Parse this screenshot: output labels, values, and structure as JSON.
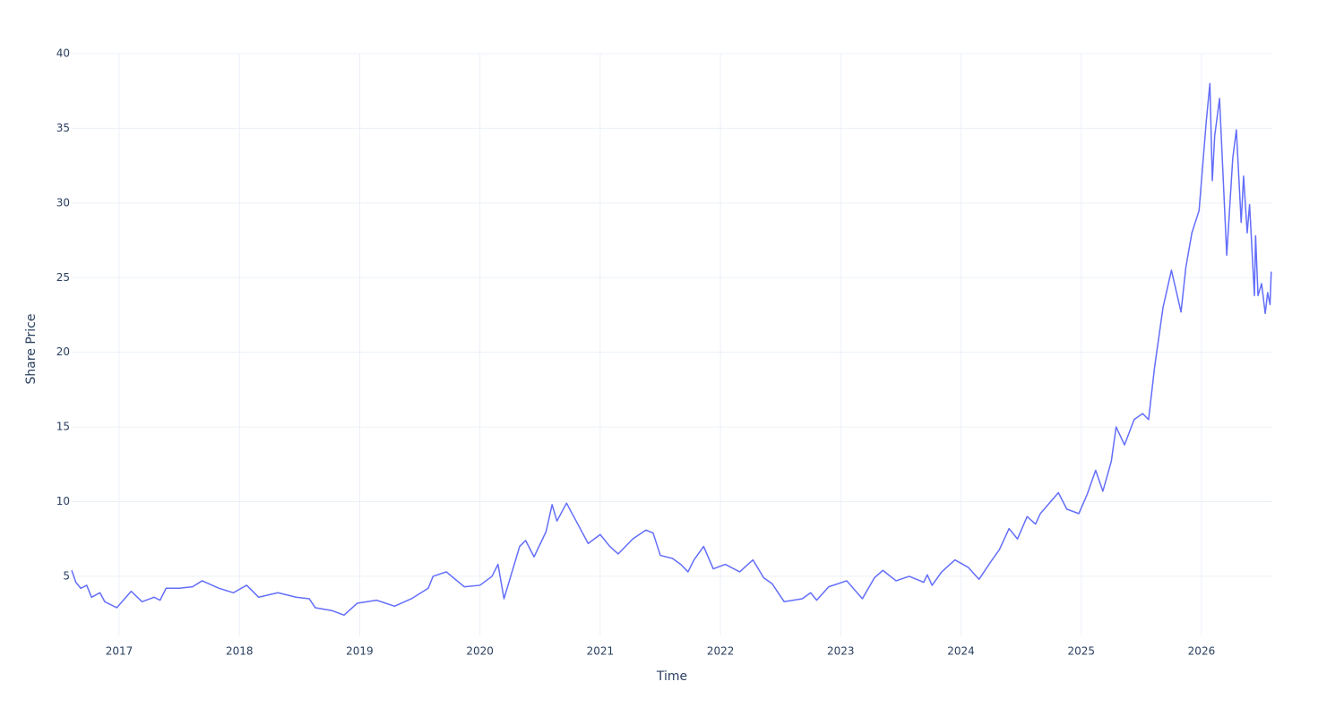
{
  "chart_data": {
    "type": "line",
    "xlabel": "Time",
    "ylabel": "Share Price",
    "color": "#636efa",
    "grid": true,
    "xlim": [
      2016.605,
      2026.589
    ],
    "xticks": [
      2017,
      2018,
      2019,
      2020,
      2021,
      2022,
      2023,
      2024,
      2025,
      2026
    ],
    "ylim": [
      1.04,
      40
    ],
    "yticks": [
      5,
      10,
      15,
      20,
      25,
      30,
      35,
      40
    ],
    "x": [
      2016.605,
      2016.64,
      2016.68,
      2016.73,
      2016.77,
      2016.84,
      2016.88,
      2016.98,
      2017.1,
      2017.19,
      2017.29,
      2017.34,
      2017.39,
      2017.5,
      2017.61,
      2017.69,
      2017.83,
      2017.95,
      2018.06,
      2018.16,
      2018.32,
      2018.47,
      2018.58,
      2018.63,
      2018.77,
      2018.87,
      2018.98,
      2019.14,
      2019.29,
      2019.43,
      2019.57,
      2019.61,
      2019.72,
      2019.81,
      2019.87,
      2020.0,
      2020.1,
      2020.15,
      2020.2,
      2020.33,
      2020.38,
      2020.45,
      2020.55,
      2020.6,
      2020.64,
      2020.72,
      2020.78,
      2020.9,
      2021.0,
      2021.08,
      2021.15,
      2021.27,
      2021.38,
      2021.44,
      2021.5,
      2021.6,
      2021.67,
      2021.73,
      2021.78,
      2021.86,
      2021.94,
      2022.04,
      2022.16,
      2022.27,
      2022.36,
      2022.43,
      2022.53,
      2022.68,
      2022.75,
      2022.8,
      2022.9,
      2023.05,
      2023.18,
      2023.28,
      2023.35,
      2023.46,
      2023.57,
      2023.69,
      2023.72,
      2023.76,
      2023.84,
      2023.95,
      2024.06,
      2024.15,
      2024.25,
      2024.32,
      2024.4,
      2024.47,
      2024.55,
      2024.62,
      2024.66,
      2024.81,
      2024.88,
      2024.98,
      2025.05,
      2025.12,
      2025.18,
      2025.25,
      2025.29,
      2025.36,
      2025.44,
      2025.51,
      2025.56,
      2025.61,
      2025.68,
      2025.75,
      2025.83,
      2025.87,
      2025.92,
      2025.98,
      2026.04,
      2026.07,
      2026.09,
      2026.11,
      2026.15,
      2026.21,
      2026.26,
      2026.29,
      2026.33,
      2026.35,
      2026.38,
      2026.4,
      2026.44,
      2026.45,
      2026.47,
      2026.5,
      2026.53,
      2026.55,
      2026.57,
      2026.58
    ],
    "values": [
      5.4,
      4.6,
      4.2,
      4.4,
      3.6,
      3.9,
      3.3,
      2.9,
      4.0,
      3.3,
      3.6,
      3.4,
      4.2,
      4.2,
      4.3,
      4.7,
      4.2,
      3.9,
      4.4,
      3.6,
      3.9,
      3.6,
      3.5,
      2.9,
      2.7,
      2.4,
      3.2,
      3.4,
      3.0,
      3.5,
      4.2,
      5.0,
      5.3,
      4.7,
      4.3,
      4.4,
      5.0,
      5.8,
      3.5,
      7.0,
      7.4,
      6.3,
      8.0,
      9.8,
      8.7,
      9.9,
      9.0,
      7.2,
      7.8,
      7.0,
      6.5,
      7.5,
      8.1,
      7.9,
      6.4,
      6.2,
      5.8,
      5.3,
      6.1,
      7.0,
      5.5,
      5.8,
      5.3,
      6.1,
      4.9,
      4.5,
      3.3,
      3.5,
      3.9,
      3.4,
      4.3,
      4.7,
      3.5,
      4.9,
      5.4,
      4.7,
      5.0,
      4.6,
      5.1,
      4.4,
      5.3,
      6.1,
      5.6,
      4.8,
      6.0,
      6.8,
      8.2,
      7.5,
      9.0,
      8.5,
      9.2,
      10.6,
      9.5,
      9.2,
      10.5,
      12.1,
      10.7,
      12.7,
      15.0,
      13.8,
      15.5,
      15.9,
      15.5,
      19.0,
      23.0,
      25.5,
      22.7,
      25.7,
      28.0,
      29.5,
      35.5,
      38.0,
      31.5,
      34.5,
      37.0,
      26.5,
      33.0,
      34.9,
      28.7,
      31.8,
      28.0,
      29.9,
      23.8,
      27.8,
      23.8,
      24.6,
      22.6,
      24.0,
      23.2,
      25.4
    ]
  }
}
